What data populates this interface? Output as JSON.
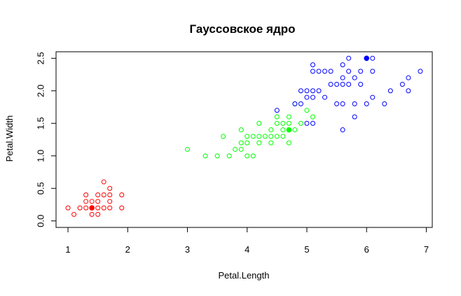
{
  "chart_data": {
    "type": "scatter",
    "title": "Гауссовское ядро",
    "xlabel": "Petal.Length",
    "ylabel": "Petal.Width",
    "xlim": [
      0.8,
      7.1
    ],
    "ylim": [
      -0.1,
      2.6
    ],
    "xticks": [
      1,
      2,
      3,
      4,
      5,
      6,
      7
    ],
    "xtick_labels": [
      "1",
      "2",
      "3",
      "4",
      "5",
      "6",
      "7"
    ],
    "yticks": [
      0.0,
      0.5,
      1.0,
      1.5,
      2.0,
      2.5
    ],
    "ytick_labels": [
      "0.0",
      "0.5",
      "1.0",
      "1.5",
      "2.0",
      "2.5"
    ],
    "grid": false,
    "marker": "open-circle",
    "series": [
      {
        "color": "#ff0000",
        "points": [
          [
            1.0,
            0.2
          ],
          [
            1.1,
            0.1
          ],
          [
            1.2,
            0.2
          ],
          [
            1.3,
            0.2
          ],
          [
            1.3,
            0.3
          ],
          [
            1.3,
            0.4
          ],
          [
            1.4,
            0.1
          ],
          [
            1.4,
            0.2
          ],
          [
            1.4,
            0.3
          ],
          [
            1.5,
            0.1
          ],
          [
            1.5,
            0.2
          ],
          [
            1.5,
            0.3
          ],
          [
            1.5,
            0.4
          ],
          [
            1.6,
            0.2
          ],
          [
            1.6,
            0.4
          ],
          [
            1.6,
            0.6
          ],
          [
            1.7,
            0.2
          ],
          [
            1.7,
            0.3
          ],
          [
            1.7,
            0.4
          ],
          [
            1.7,
            0.5
          ],
          [
            1.9,
            0.2
          ],
          [
            1.9,
            0.4
          ]
        ],
        "highlight": [
          1.4,
          0.2
        ]
      },
      {
        "color": "#00ff00",
        "points": [
          [
            3.0,
            1.1
          ],
          [
            3.3,
            1.0
          ],
          [
            3.5,
            1.0
          ],
          [
            3.6,
            1.3
          ],
          [
            3.7,
            1.0
          ],
          [
            3.8,
            1.1
          ],
          [
            3.9,
            1.1
          ],
          [
            3.9,
            1.2
          ],
          [
            3.9,
            1.4
          ],
          [
            4.0,
            1.0
          ],
          [
            4.0,
            1.2
          ],
          [
            4.0,
            1.3
          ],
          [
            4.1,
            1.0
          ],
          [
            4.1,
            1.3
          ],
          [
            4.2,
            1.2
          ],
          [
            4.2,
            1.3
          ],
          [
            4.2,
            1.5
          ],
          [
            4.3,
            1.3
          ],
          [
            4.4,
            1.2
          ],
          [
            4.4,
            1.3
          ],
          [
            4.4,
            1.4
          ],
          [
            4.5,
            1.3
          ],
          [
            4.5,
            1.5
          ],
          [
            4.5,
            1.6
          ],
          [
            4.6,
            1.3
          ],
          [
            4.6,
            1.4
          ],
          [
            4.6,
            1.5
          ],
          [
            4.7,
            1.2
          ],
          [
            4.7,
            1.4
          ],
          [
            4.7,
            1.5
          ],
          [
            4.7,
            1.6
          ],
          [
            4.8,
            1.4
          ],
          [
            4.8,
            1.8
          ],
          [
            4.9,
            1.5
          ],
          [
            5.0,
            1.7
          ],
          [
            5.1,
            1.6
          ]
        ],
        "highlight": [
          4.7,
          1.4
        ]
      },
      {
        "color": "#0000ff",
        "points": [
          [
            4.5,
            1.7
          ],
          [
            4.8,
            1.8
          ],
          [
            4.9,
            1.8
          ],
          [
            4.9,
            2.0
          ],
          [
            5.0,
            1.5
          ],
          [
            5.0,
            1.9
          ],
          [
            5.0,
            2.0
          ],
          [
            5.1,
            1.5
          ],
          [
            5.1,
            1.9
          ],
          [
            5.1,
            2.0
          ],
          [
            5.1,
            2.3
          ],
          [
            5.1,
            2.4
          ],
          [
            5.2,
            2.0
          ],
          [
            5.2,
            2.3
          ],
          [
            5.3,
            1.9
          ],
          [
            5.3,
            2.3
          ],
          [
            5.4,
            2.1
          ],
          [
            5.4,
            2.3
          ],
          [
            5.5,
            1.8
          ],
          [
            5.5,
            2.1
          ],
          [
            5.6,
            1.4
          ],
          [
            5.6,
            1.8
          ],
          [
            5.6,
            2.1
          ],
          [
            5.6,
            2.2
          ],
          [
            5.6,
            2.4
          ],
          [
            5.7,
            2.1
          ],
          [
            5.7,
            2.3
          ],
          [
            5.7,
            2.5
          ],
          [
            5.8,
            1.6
          ],
          [
            5.8,
            1.8
          ],
          [
            5.8,
            2.2
          ],
          [
            5.9,
            2.1
          ],
          [
            5.9,
            2.3
          ],
          [
            6.0,
            1.8
          ],
          [
            6.1,
            1.9
          ],
          [
            6.1,
            2.3
          ],
          [
            6.1,
            2.5
          ],
          [
            6.3,
            1.8
          ],
          [
            6.4,
            2.0
          ],
          [
            6.6,
            2.1
          ],
          [
            6.7,
            2.0
          ],
          [
            6.7,
            2.2
          ],
          [
            6.9,
            2.3
          ]
        ],
        "highlight": [
          6.0,
          2.5
        ]
      }
    ]
  }
}
